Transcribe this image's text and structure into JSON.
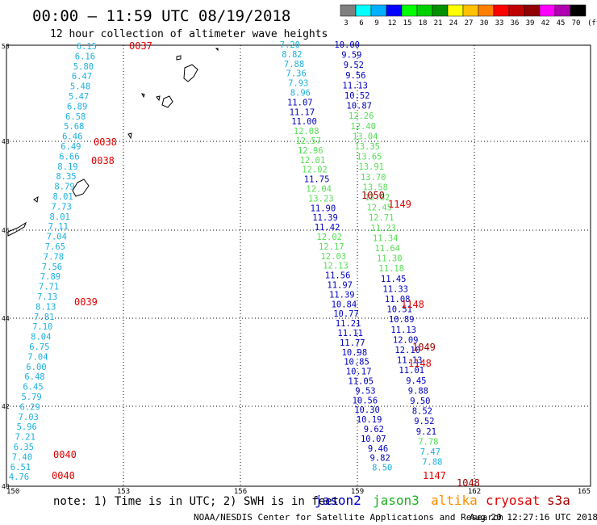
{
  "header": {
    "title": "00:00 – 11:59 UTC 08/19/2018",
    "subtitle": "12 hour collection of altimeter wave heights"
  },
  "legend": {
    "steps": [
      "3",
      "6",
      "9",
      "12",
      "15",
      "18",
      "21",
      "24",
      "27",
      "30",
      "33",
      "36",
      "39",
      "42",
      "45",
      "70"
    ],
    "unit": "(ft)",
    "colors": [
      "#7f7f7f",
      "#00ffff",
      "#00b0ff",
      "#0000ff",
      "#00ff00",
      "#00d000",
      "#009000",
      "#ffff00",
      "#ffc000",
      "#ff8000",
      "#ff0000",
      "#c00000",
      "#900000",
      "#ff00ff",
      "#b000b0",
      "#000000"
    ]
  },
  "axes": {
    "lat_labels": [
      "50",
      "48",
      "46",
      "44",
      "42",
      "40"
    ],
    "lon_labels": [
      "150",
      "153",
      "156",
      "159",
      "162",
      "165"
    ]
  },
  "footer": {
    "note": "note: 1) Time is in UTC; 2) SWH is in feet",
    "sat_jason2": "jason2",
    "sat_jason3": "jason3",
    "sat_altika": "altika",
    "sat_cryosat": "cryosat",
    "sat_s3a": "s3a",
    "credit": "NOAA/NESDIS Center for Satellite Applications and Research",
    "timestamp": "Aug 20 12:27:16 UTC 2018"
  },
  "colors": {
    "jason2": "#0000c8",
    "jason3": "#22b022",
    "altika": "#ff8c00",
    "cryosat": "#e00000",
    "s3a": "#a00000",
    "track_cyan": "#1ab0e0",
    "track_green": "#55dd55",
    "track_blue": "#0000c0"
  },
  "tracks": {
    "west": [
      "6.15",
      "6.16",
      "5.80",
      "6.47",
      "5.48",
      "5.47",
      "6.89",
      "6.58",
      "5.68",
      "6.46",
      "6.49",
      "6.66",
      "8.19",
      "8.35",
      "8.79",
      "8.01",
      "7.73",
      "8.01",
      "7.11",
      "7.04",
      "7.65",
      "7.78",
      "7.56",
      "7.89",
      "7.71",
      "7.13",
      "8.13",
      "7.81",
      "7.10",
      "8.04",
      "6.75",
      "7.04",
      "6.00",
      "6.48",
      "6.45",
      "5.79",
      "6.29",
      "7.03",
      "5.96",
      "7.21",
      "6.35",
      "7.40",
      "6.51",
      "4.76"
    ],
    "west_times": [
      "0037",
      "0038",
      "0038",
      "0039",
      "0040",
      "0040"
    ],
    "east_a": [
      "7.20",
      "8.82",
      "7.88",
      "7.36",
      "7.93",
      "8.96",
      "11.07",
      "11.17",
      "11.00",
      "12.08",
      "12.57",
      "12.96",
      "12.01",
      "12.02",
      "11.75",
      "12.04",
      "13.23",
      "11.90",
      "11.39",
      "11.42",
      "12.02",
      "12.17",
      "12.03",
      "12.13",
      "11.56",
      "11.97",
      "11.39",
      "10.84",
      "10.77",
      "11.21",
      "11.11",
      "11.77",
      "10.98",
      "10.85",
      "10.17",
      "11.05",
      "9.53",
      "10.56",
      "10.30",
      "10.19",
      "9.62",
      "10.07",
      "9.46",
      "9.82",
      "8.50"
    ],
    "east_b": [
      "10.00",
      "9.59",
      "9.52",
      "9.56",
      "11.13",
      "10.52",
      "10.87",
      "12.26",
      "12.40",
      "13.04",
      "13.35",
      "13.65",
      "13.91",
      "13.70",
      "13.58",
      "12.82",
      "12.45",
      "12.71",
      "11.23",
      "11.34",
      "11.64",
      "11.30",
      "11.18",
      "11.45",
      "11.33",
      "11.08",
      "10.51",
      "10.89",
      "11.13",
      "12.09",
      "12.10",
      "11.13",
      "11.01",
      "9.45",
      "9.88",
      "9.50",
      "8.52",
      "9.52",
      "9.21",
      "7.78",
      "7.47",
      "7.88"
    ],
    "east_times": [
      "1050",
      "1149",
      "1148",
      "1049",
      "1148",
      "1147",
      "1048"
    ]
  }
}
